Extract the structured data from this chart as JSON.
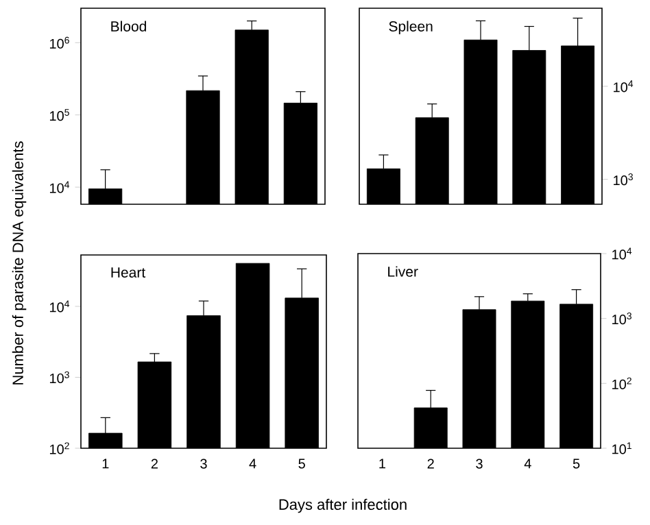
{
  "chart_data": [
    {
      "type": "bar",
      "title": "Blood",
      "ylabel": "Number of parasite DNA equivalents",
      "categories": [
        "1",
        "2",
        "3",
        "4",
        "5"
      ],
      "log": "y",
      "tick_labels": "y",
      "ylim": [
        5800,
        3000000
      ],
      "yticks": [
        {
          "value": 10000,
          "label": "10$^{4}$"
        },
        {
          "value": 100000,
          "label": "10$^{5}$"
        },
        {
          "value": 1000000,
          "label": "10$^{6}$"
        }
      ],
      "series": [
        {
          "color": "#000000",
          "values": [
            9500,
            null,
            217000,
            1500000,
            146000
          ],
          "errors": [
            [
              9500,
              17400
            ],
            null,
            [
              217000,
              346000
            ],
            [
              1500000,
              2000000
            ],
            [
              146000,
              210000
            ]
          ]
        }
      ]
    },
    {
      "type": "bar",
      "title": "Spleen",
      "categories": [
        "1",
        "2",
        "3",
        "4",
        "5"
      ],
      "log": "y2",
      "tick_labels": "y",
      "y2lim": [
        540,
        69000
      ],
      "y2ticks": [
        {
          "value": 1000,
          "label": "10$^{3}$"
        },
        {
          "value": 10000,
          "label": "10$^{4}$"
        }
      ],
      "series": [
        {
          "color": "#000000",
          "axis": "y2",
          "values": [
            1300,
            4600,
            31500,
            24300,
            27200
          ],
          "errors": [
            [
              1300,
              1830
            ],
            [
              4600,
              6460
            ],
            [
              31500,
              50500
            ],
            [
              24300,
              44000
            ],
            [
              27200,
              54000
            ]
          ]
        }
      ]
    },
    {
      "type": "bar",
      "title": "Heart",
      "xlabel": "Days after infection",
      "categories": [
        "1",
        "2",
        "3",
        "4",
        "5"
      ],
      "log": "y",
      "ylim": [
        100,
        53000
      ],
      "yticks": [
        {
          "value": 100,
          "label": "10$^{2}$"
        },
        {
          "value": 1000,
          "label": "10$^{3}$"
        },
        {
          "value": 10000,
          "label": "10$^{4}$"
        }
      ],
      "series": [
        {
          "color": "#000000",
          "values": [
            163,
            1650,
            7400,
            40400,
            13100
          ],
          "errors": [
            [
              163,
              270
            ],
            [
              1650,
              2160
            ],
            [
              7400,
              11900
            ],
            null,
            [
              13100,
              33800
            ]
          ]
        }
      ]
    },
    {
      "type": "bar",
      "title": "Liver",
      "categories": [
        "1",
        "2",
        "3",
        "4",
        "5"
      ],
      "log": "y2",
      "y2lim": [
        10,
        10000
      ],
      "y2ticks": [
        {
          "value": 10,
          "label": "10$^{1}$"
        },
        {
          "value": 100,
          "label": "10$^{2}$"
        },
        {
          "value": 1000,
          "label": "10$^{3}$"
        },
        {
          "value": 10000,
          "label": "10$^{4}$"
        }
      ],
      "series": [
        {
          "color": "#000000",
          "axis": "y2",
          "values": [
            null,
            42,
            1370,
            1860,
            1660
          ],
          "errors": [
            null,
            [
              42,
              78
            ],
            [
              1370,
              2170
            ],
            [
              1860,
              2400
            ],
            [
              1660,
              2780
            ]
          ]
        }
      ]
    }
  ]
}
